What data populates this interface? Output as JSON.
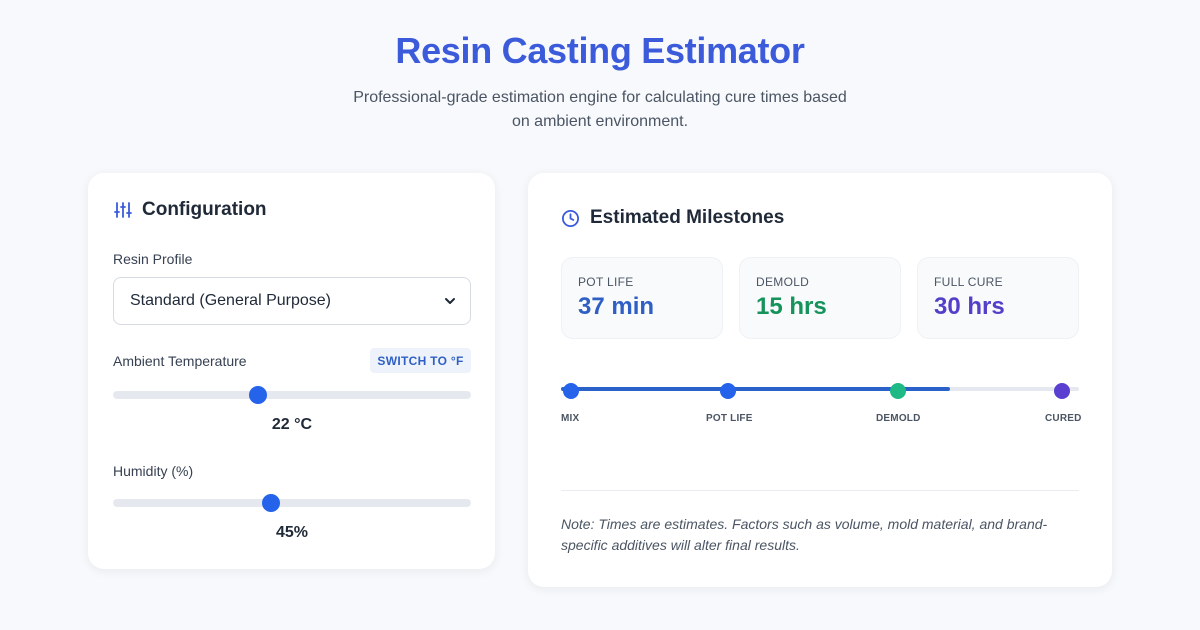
{
  "header": {
    "title": "Resin Casting Estimator",
    "subtitle": "Professional-grade estimation engine for calculating cure times based on ambient environment."
  },
  "config": {
    "heading": "Configuration",
    "icon": "sliders-icon",
    "resin_label": "Resin Profile",
    "resin_value": "Standard (General Purpose)",
    "temp_label": "Ambient Temperature",
    "unit_toggle": "SWITCH TO °F",
    "temp_value": "22 °C",
    "temp_fraction": 0.405,
    "humidity_label": "Humidity (%)",
    "humidity_value": "45%",
    "humidity_fraction": 0.44
  },
  "milestones": {
    "heading": "Estimated Milestones",
    "icon": "clock-icon",
    "stats": [
      {
        "label": "POT LIFE",
        "value": "37 min",
        "color": "#2f5fc4"
      },
      {
        "label": "DEMOLD",
        "value": "15 hrs",
        "color": "#15935a"
      },
      {
        "label": "FULL CURE",
        "value": "30 hrs",
        "color": "#5240c9"
      }
    ],
    "timeline": {
      "progress_fraction": 0.75,
      "points": [
        {
          "label": "MIX",
          "color": "#2563eb"
        },
        {
          "label": "POT LIFE",
          "color": "#2563eb"
        },
        {
          "label": "DEMOLD",
          "color": "#1fb985"
        },
        {
          "label": "CURED",
          "color": "#5a3fd0"
        }
      ]
    },
    "note": "Note: Times are estimates. Factors such as volume, mold material, and brand-specific additives will alter final results."
  }
}
